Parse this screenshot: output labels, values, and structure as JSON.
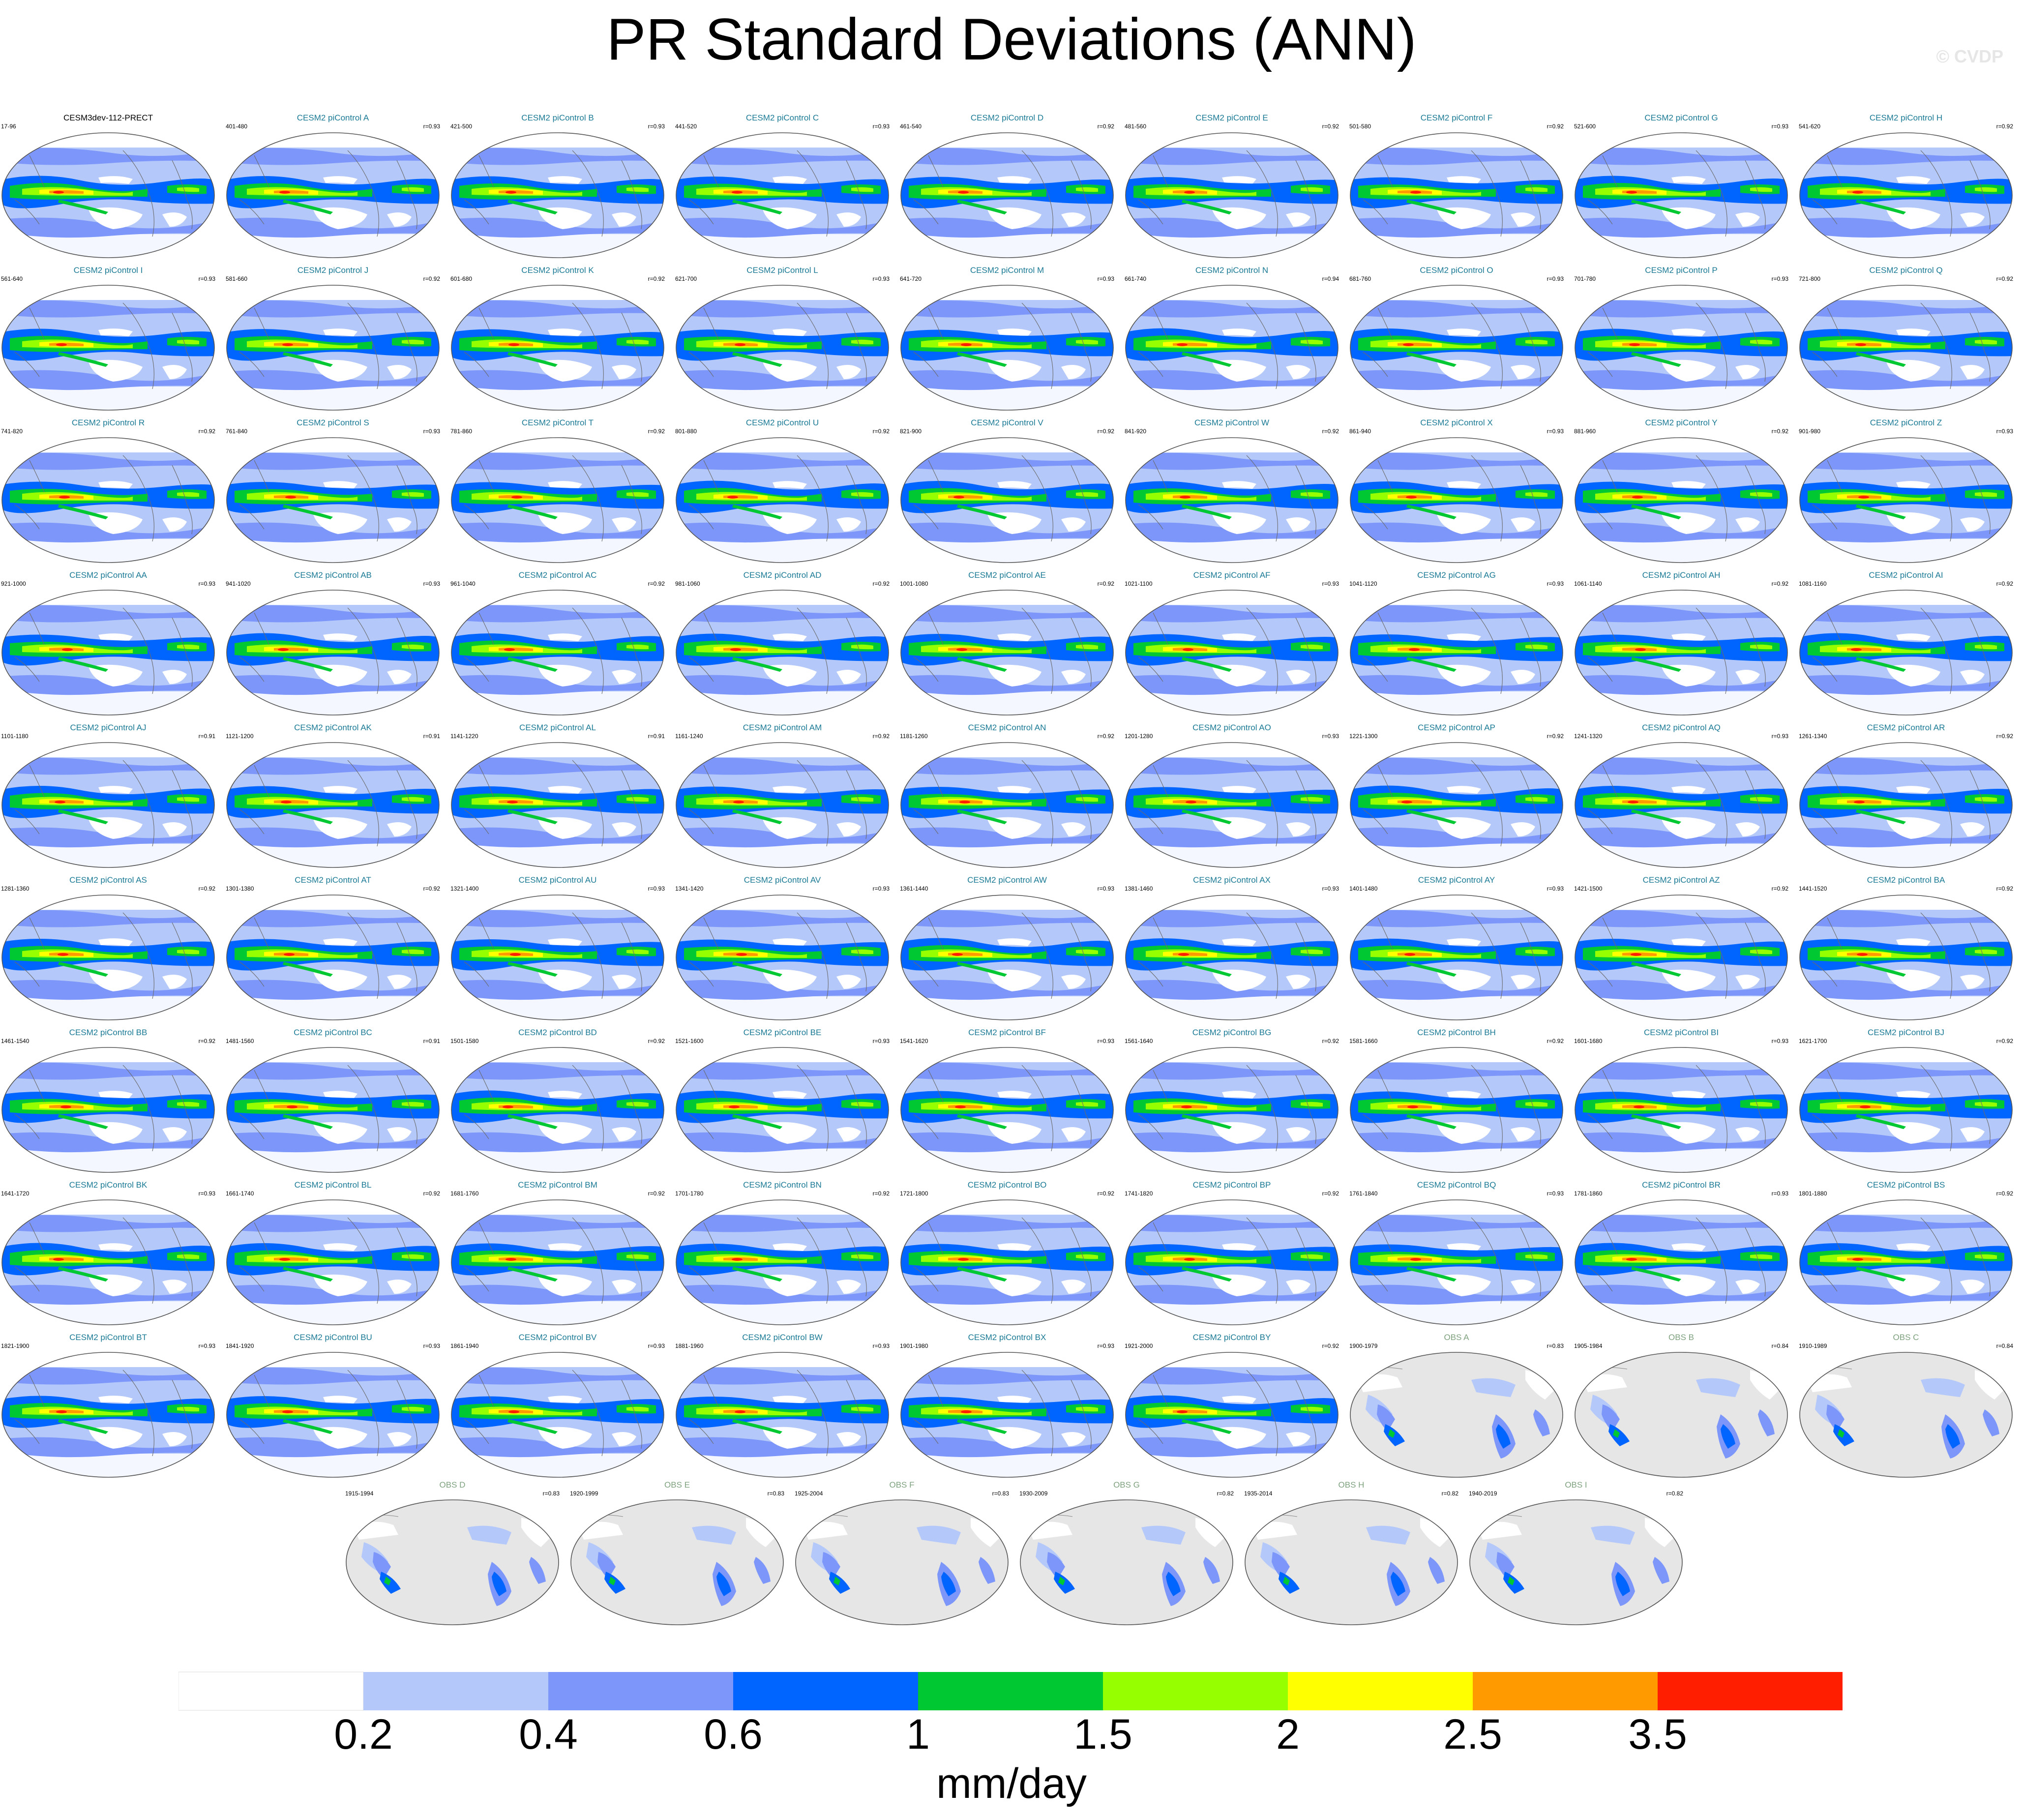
{
  "title": "PR Standard Deviations (ANN)",
  "credit": "© CVDP",
  "colors": {
    "levels": [
      "#ffffff",
      "#b4c8fa",
      "#7c96fa",
      "#0064ff",
      "#00c832",
      "#96ff00",
      "#ffff00",
      "#ff9b00",
      "#ff1e00"
    ],
    "land": "#e6e6e6",
    "ocean_frame": "#ffffff",
    "model_title": "#1a7a95",
    "obs_title": "#7fa27f"
  },
  "panels": [
    {
      "title": "CESM3dev-112-PRECT",
      "years": "17-96",
      "r": "",
      "kind": "model0"
    },
    {
      "title": "CESM2 piControl A",
      "years": "401-480",
      "r": "r=0.93",
      "kind": "model"
    },
    {
      "title": "CESM2 piControl B",
      "years": "421-500",
      "r": "r=0.93",
      "kind": "model"
    },
    {
      "title": "CESM2 piControl C",
      "years": "441-520",
      "r": "r=0.93",
      "kind": "model"
    },
    {
      "title": "CESM2 piControl D",
      "years": "461-540",
      "r": "r=0.92",
      "kind": "model"
    },
    {
      "title": "CESM2 piControl E",
      "years": "481-560",
      "r": "r=0.92",
      "kind": "model"
    },
    {
      "title": "CESM2 piControl F",
      "years": "501-580",
      "r": "r=0.92",
      "kind": "model"
    },
    {
      "title": "CESM2 piControl G",
      "years": "521-600",
      "r": "r=0.93",
      "kind": "model"
    },
    {
      "title": "CESM2 piControl H",
      "years": "541-620",
      "r": "r=0.92",
      "kind": "model"
    },
    {
      "title": "CESM2 piControl I",
      "years": "561-640",
      "r": "r=0.93",
      "kind": "model"
    },
    {
      "title": "CESM2 piControl J",
      "years": "581-660",
      "r": "r=0.92",
      "kind": "model"
    },
    {
      "title": "CESM2 piControl K",
      "years": "601-680",
      "r": "r=0.92",
      "kind": "model"
    },
    {
      "title": "CESM2 piControl L",
      "years": "621-700",
      "r": "r=0.93",
      "kind": "model"
    },
    {
      "title": "CESM2 piControl M",
      "years": "641-720",
      "r": "r=0.93",
      "kind": "model"
    },
    {
      "title": "CESM2 piControl N",
      "years": "661-740",
      "r": "r=0.94",
      "kind": "model"
    },
    {
      "title": "CESM2 piControl O",
      "years": "681-760",
      "r": "r=0.93",
      "kind": "model"
    },
    {
      "title": "CESM2 piControl P",
      "years": "701-780",
      "r": "r=0.93",
      "kind": "model"
    },
    {
      "title": "CESM2 piControl Q",
      "years": "721-800",
      "r": "r=0.92",
      "kind": "model"
    },
    {
      "title": "CESM2 piControl R",
      "years": "741-820",
      "r": "r=0.92",
      "kind": "model"
    },
    {
      "title": "CESM2 piControl S",
      "years": "761-840",
      "r": "r=0.93",
      "kind": "model"
    },
    {
      "title": "CESM2 piControl T",
      "years": "781-860",
      "r": "r=0.92",
      "kind": "model"
    },
    {
      "title": "CESM2 piControl U",
      "years": "801-880",
      "r": "r=0.92",
      "kind": "model"
    },
    {
      "title": "CESM2 piControl V",
      "years": "821-900",
      "r": "r=0.92",
      "kind": "model"
    },
    {
      "title": "CESM2 piControl W",
      "years": "841-920",
      "r": "r=0.92",
      "kind": "model"
    },
    {
      "title": "CESM2 piControl X",
      "years": "861-940",
      "r": "r=0.93",
      "kind": "model"
    },
    {
      "title": "CESM2 piControl Y",
      "years": "881-960",
      "r": "r=0.92",
      "kind": "model"
    },
    {
      "title": "CESM2 piControl Z",
      "years": "901-980",
      "r": "r=0.93",
      "kind": "model"
    },
    {
      "title": "CESM2 piControl AA",
      "years": "921-1000",
      "r": "r=0.93",
      "kind": "model"
    },
    {
      "title": "CESM2 piControl AB",
      "years": "941-1020",
      "r": "r=0.93",
      "kind": "model"
    },
    {
      "title": "CESM2 piControl AC",
      "years": "961-1040",
      "r": "r=0.92",
      "kind": "model"
    },
    {
      "title": "CESM2 piControl AD",
      "years": "981-1060",
      "r": "r=0.92",
      "kind": "model"
    },
    {
      "title": "CESM2 piControl AE",
      "years": "1001-1080",
      "r": "r=0.92",
      "kind": "model"
    },
    {
      "title": "CESM2 piControl AF",
      "years": "1021-1100",
      "r": "r=0.93",
      "kind": "model"
    },
    {
      "title": "CESM2 piControl AG",
      "years": "1041-1120",
      "r": "r=0.93",
      "kind": "model"
    },
    {
      "title": "CESM2 piControl AH",
      "years": "1061-1140",
      "r": "r=0.92",
      "kind": "model"
    },
    {
      "title": "CESM2 piControl AI",
      "years": "1081-1160",
      "r": "r=0.92",
      "kind": "model"
    },
    {
      "title": "CESM2 piControl AJ",
      "years": "1101-1180",
      "r": "r=0.91",
      "kind": "model"
    },
    {
      "title": "CESM2 piControl AK",
      "years": "1121-1200",
      "r": "r=0.91",
      "kind": "model"
    },
    {
      "title": "CESM2 piControl AL",
      "years": "1141-1220",
      "r": "r=0.91",
      "kind": "model"
    },
    {
      "title": "CESM2 piControl AM",
      "years": "1161-1240",
      "r": "r=0.92",
      "kind": "model"
    },
    {
      "title": "CESM2 piControl AN",
      "years": "1181-1260",
      "r": "r=0.92",
      "kind": "model"
    },
    {
      "title": "CESM2 piControl AO",
      "years": "1201-1280",
      "r": "r=0.93",
      "kind": "model"
    },
    {
      "title": "CESM2 piControl AP",
      "years": "1221-1300",
      "r": "r=0.92",
      "kind": "model"
    },
    {
      "title": "CESM2 piControl AQ",
      "years": "1241-1320",
      "r": "r=0.93",
      "kind": "model"
    },
    {
      "title": "CESM2 piControl AR",
      "years": "1261-1340",
      "r": "r=0.92",
      "kind": "model"
    },
    {
      "title": "CESM2 piControl AS",
      "years": "1281-1360",
      "r": "r=0.92",
      "kind": "model"
    },
    {
      "title": "CESM2 piControl AT",
      "years": "1301-1380",
      "r": "r=0.92",
      "kind": "model"
    },
    {
      "title": "CESM2 piControl AU",
      "years": "1321-1400",
      "r": "r=0.93",
      "kind": "model"
    },
    {
      "title": "CESM2 piControl AV",
      "years": "1341-1420",
      "r": "r=0.93",
      "kind": "model"
    },
    {
      "title": "CESM2 piControl AW",
      "years": "1361-1440",
      "r": "r=0.93",
      "kind": "model"
    },
    {
      "title": "CESM2 piControl AX",
      "years": "1381-1460",
      "r": "r=0.93",
      "kind": "model"
    },
    {
      "title": "CESM2 piControl AY",
      "years": "1401-1480",
      "r": "r=0.93",
      "kind": "model"
    },
    {
      "title": "CESM2 piControl AZ",
      "years": "1421-1500",
      "r": "r=0.92",
      "kind": "model"
    },
    {
      "title": "CESM2 piControl BA",
      "years": "1441-1520",
      "r": "r=0.92",
      "kind": "model"
    },
    {
      "title": "CESM2 piControl BB",
      "years": "1461-1540",
      "r": "r=0.92",
      "kind": "model"
    },
    {
      "title": "CESM2 piControl BC",
      "years": "1481-1560",
      "r": "r=0.91",
      "kind": "model"
    },
    {
      "title": "CESM2 piControl BD",
      "years": "1501-1580",
      "r": "r=0.92",
      "kind": "model"
    },
    {
      "title": "CESM2 piControl BE",
      "years": "1521-1600",
      "r": "r=0.93",
      "kind": "model"
    },
    {
      "title": "CESM2 piControl BF",
      "years": "1541-1620",
      "r": "r=0.93",
      "kind": "model"
    },
    {
      "title": "CESM2 piControl BG",
      "years": "1561-1640",
      "r": "r=0.92",
      "kind": "model"
    },
    {
      "title": "CESM2 piControl BH",
      "years": "1581-1660",
      "r": "r=0.92",
      "kind": "model"
    },
    {
      "title": "CESM2 piControl BI",
      "years": "1601-1680",
      "r": "r=0.93",
      "kind": "model"
    },
    {
      "title": "CESM2 piControl BJ",
      "years": "1621-1700",
      "r": "r=0.92",
      "kind": "model"
    },
    {
      "title": "CESM2 piControl BK",
      "years": "1641-1720",
      "r": "r=0.93",
      "kind": "model"
    },
    {
      "title": "CESM2 piControl BL",
      "years": "1661-1740",
      "r": "r=0.92",
      "kind": "model"
    },
    {
      "title": "CESM2 piControl BM",
      "years": "1681-1760",
      "r": "r=0.92",
      "kind": "model"
    },
    {
      "title": "CESM2 piControl BN",
      "years": "1701-1780",
      "r": "r=0.92",
      "kind": "model"
    },
    {
      "title": "CESM2 piControl BO",
      "years": "1721-1800",
      "r": "r=0.92",
      "kind": "model"
    },
    {
      "title": "CESM2 piControl BP",
      "years": "1741-1820",
      "r": "r=0.92",
      "kind": "model"
    },
    {
      "title": "CESM2 piControl BQ",
      "years": "1761-1840",
      "r": "r=0.93",
      "kind": "model"
    },
    {
      "title": "CESM2 piControl BR",
      "years": "1781-1860",
      "r": "r=0.93",
      "kind": "model"
    },
    {
      "title": "CESM2 piControl BS",
      "years": "1801-1880",
      "r": "r=0.92",
      "kind": "model"
    },
    {
      "title": "CESM2 piControl BT",
      "years": "1821-1900",
      "r": "r=0.93",
      "kind": "model"
    },
    {
      "title": "CESM2 piControl BU",
      "years": "1841-1920",
      "r": "r=0.93",
      "kind": "model"
    },
    {
      "title": "CESM2 piControl BV",
      "years": "1861-1940",
      "r": "r=0.93",
      "kind": "model"
    },
    {
      "title": "CESM2 piControl BW",
      "years": "1881-1960",
      "r": "r=0.93",
      "kind": "model"
    },
    {
      "title": "CESM2 piControl BX",
      "years": "1901-1980",
      "r": "r=0.93",
      "kind": "model"
    },
    {
      "title": "CESM2 piControl BY",
      "years": "1921-2000",
      "r": "r=0.92",
      "kind": "model"
    },
    {
      "title": "OBS A",
      "years": "1900-1979",
      "r": "r=0.83",
      "kind": "obs"
    },
    {
      "title": "OBS B",
      "years": "1905-1984",
      "r": "r=0.84",
      "kind": "obs"
    },
    {
      "title": "OBS C",
      "years": "1910-1989",
      "r": "r=0.84",
      "kind": "obs"
    },
    {
      "title": "OBS D",
      "years": "1915-1994",
      "r": "r=0.83",
      "kind": "obs"
    },
    {
      "title": "OBS E",
      "years": "1920-1999",
      "r": "r=0.83",
      "kind": "obs"
    },
    {
      "title": "OBS F",
      "years": "1925-2004",
      "r": "r=0.83",
      "kind": "obs"
    },
    {
      "title": "OBS G",
      "years": "1930-2009",
      "r": "r=0.82",
      "kind": "obs"
    },
    {
      "title": "OBS H",
      "years": "1935-2014",
      "r": "r=0.82",
      "kind": "obs"
    },
    {
      "title": "OBS I",
      "years": "1940-2019",
      "r": "r=0.82",
      "kind": "obs"
    }
  ],
  "colorbar": {
    "ticks": [
      "0.2",
      "0.4",
      "0.6",
      "1",
      "1.5",
      "2",
      "2.5",
      "3.5"
    ],
    "label": "mm/day"
  },
  "chart_data": {
    "type": "heatmap",
    "title": "PR Standard Deviations (ANN)",
    "variable": "PR",
    "season": "ANN",
    "units": "mm/day",
    "contour_levels": [
      0.2,
      0.4,
      0.6,
      1,
      1.5,
      2,
      2.5,
      3.5
    ],
    "n_panels": 87
  }
}
